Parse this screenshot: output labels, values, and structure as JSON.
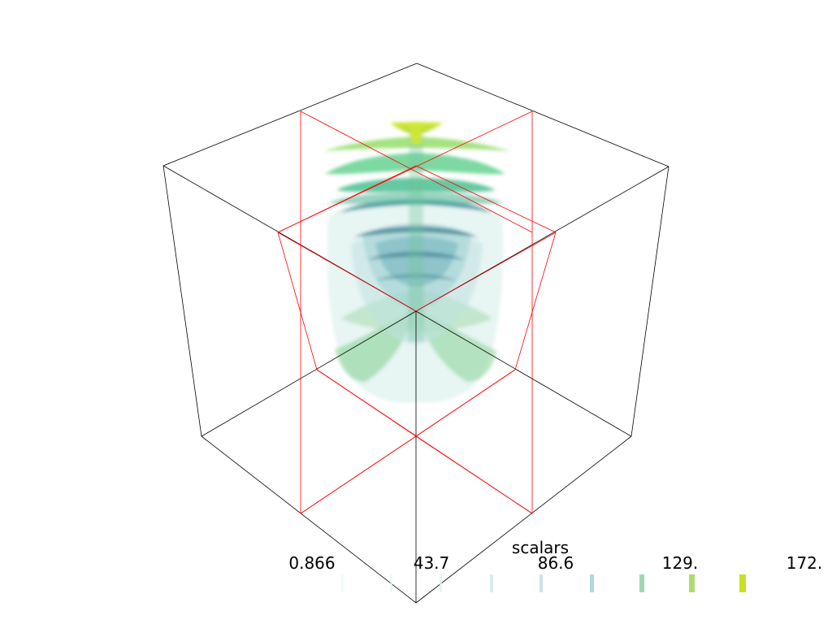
{
  "scalar_bar": {
    "title": "scalars",
    "labels": [
      "0.866",
      "43.7",
      "86.6",
      "129.",
      "172."
    ]
  },
  "colors": {
    "background": "#ffffff",
    "outline": "#000000",
    "slice_outline": "#ff0000",
    "colormap_low": "#dff1ef",
    "colormap_mid": "#2b7c8f",
    "colormap_high": "#c7e020"
  }
}
